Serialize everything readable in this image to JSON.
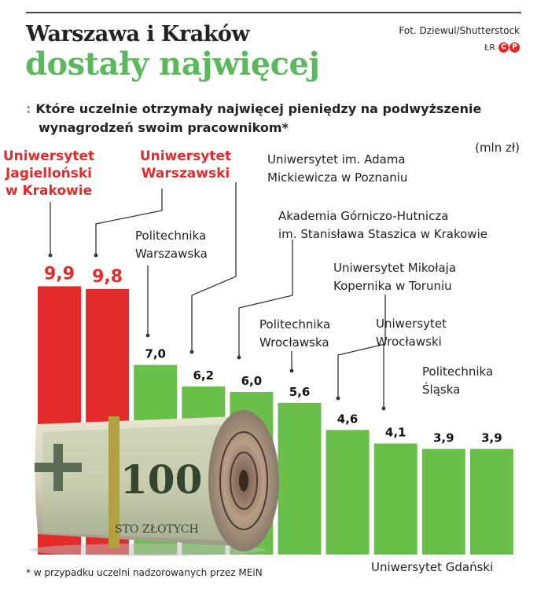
{
  "header": {
    "title_line1": "Warszawa i Kraków",
    "title_line2": "dostały najwięcej",
    "photo_credit": "Fot. Dziewul/Shutterstock",
    "agency_initials": "ŁR",
    "agency_logo_letters": [
      "C",
      "P"
    ]
  },
  "subtitle": {
    "bullet": ":",
    "line1": "Które uczelnie otrzymały najwięcej pieniędzy na podwyższenie",
    "line2": "wynagrodzeń swoim pracownikom*"
  },
  "unit_label": "(mln zł)",
  "footnote": "* w przypadku uczelni nadzorowanych przez MEiN",
  "banknote_text": "100",
  "banknote_caption": "STO ZŁOTYCH",
  "colors": {
    "highlight": "#e52a2a",
    "bar": "#6abf4b",
    "title_green": "#5cb85c",
    "leader": "#333333"
  },
  "chart_data": {
    "type": "bar",
    "title": "Które uczelnie otrzymały najwięcej pieniędzy na podwyższenie wynagrodzeń swoim pracownikom*",
    "ylabel": "(mln zł)",
    "ylim": [
      0,
      10
    ],
    "highlighted_categories": [
      "Uniwersytet Jagielloński w Krakowie",
      "Uniwersytet Warszawski"
    ],
    "categories": [
      "Uniwersytet Jagielloński w Krakowie",
      "Uniwersytet Warszawski",
      "Politechnika Warszawska",
      "Uniwersytet im. Adama Mickiewicza w Poznaniu",
      "Akademia Górniczo-Hutnicza im. Stanisława Staszica w Krakowie",
      "Politechnika Wrocławska",
      "Uniwersytet Mikołaja Kopernika w Toruniu",
      "Uniwersytet Wrocławski",
      "Politechnika Śląska",
      "Uniwersytet Gdański"
    ],
    "category_label_lines": [
      [
        "Uniwersytet",
        "Jagielloński",
        "w Krakowie"
      ],
      [
        "Uniwersytet",
        "Warszawski"
      ],
      [
        "Politechnika",
        "Warszawska"
      ],
      [
        "Uniwersytet im. Adama",
        "Mickiewicza w Poznaniu"
      ],
      [
        "Akademia Górniczo-Hutnicza",
        "im. Stanisława Staszica w Krakowie"
      ],
      [
        "Politechnika",
        "Wrocławska"
      ],
      [
        "Uniwersytet Mikołaja",
        "Kopernika w Toruniu"
      ],
      [
        "Uniwersytet",
        "Wrocławski"
      ],
      [
        "Politechnika",
        "Śląska"
      ],
      [
        "Uniwersytet Gdański"
      ]
    ],
    "values": [
      9.9,
      9.8,
      7.0,
      6.2,
      6.0,
      5.6,
      4.6,
      4.1,
      3.9,
      3.9
    ],
    "value_labels": [
      "9,9",
      "9,8",
      "7,0",
      "6,2",
      "6,0",
      "5,6",
      "4,6",
      "4,1",
      "3,9",
      "3,9"
    ]
  }
}
